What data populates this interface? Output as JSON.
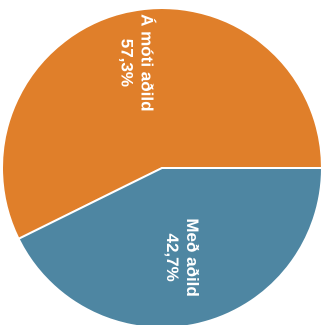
{
  "chart_data": {
    "type": "pie",
    "title": "",
    "slices": [
      {
        "label": "Á móti aðild",
        "value_label": "57,3%",
        "value": 57.3,
        "color": "#e07f2a"
      },
      {
        "label": "Með aðild",
        "value_label": "42,7%",
        "value": 42.7,
        "color": "#4e86a2"
      }
    ],
    "start_angle_deg": 0,
    "direction": "clockwise",
    "label_orientation": "rotated-90-clockwise",
    "legend": "none"
  }
}
